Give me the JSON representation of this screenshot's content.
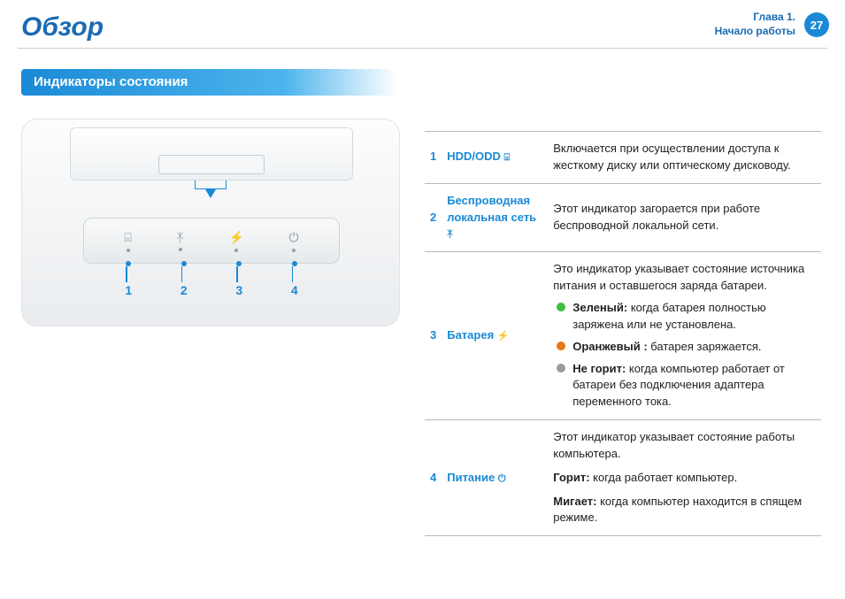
{
  "header": {
    "title": "Обзор",
    "chapter_line1": "Глава 1.",
    "chapter_line2": "Начало работы",
    "page_number": "27"
  },
  "section": {
    "title": "Индикаторы состояния"
  },
  "diagram": {
    "led_count": 4,
    "led_icons": [
      "disk",
      "wifi",
      "battery",
      "power"
    ],
    "numbers": [
      "1",
      "2",
      "3",
      "4"
    ],
    "accent_color": "#1a8ad6"
  },
  "table": {
    "rows": [
      {
        "num": "1",
        "label": "HDD/ODD",
        "icon": "disk",
        "desc": "Включается при осуществлении доступа к жесткому диску или оптическому дисководу."
      },
      {
        "num": "2",
        "label": "Беспроводная локальная сеть",
        "icon": "wifi",
        "desc": "Этот индикатор загорается при работе беспроводной локальной сети."
      },
      {
        "num": "3",
        "label": "Батарея",
        "icon": "battery",
        "desc_intro": "Это индикатор указывает состояние источника питания и оставшегося заряда батареи.",
        "bullets": [
          {
            "color": "#3fbf3f",
            "bold": "Зеленый:",
            "text": " когда батарея полностью заряжена или не установлена."
          },
          {
            "color": "#e67817",
            "bold": "Оранжевый :",
            "text": " батарея заряжается."
          },
          {
            "color": "#9a9a9a",
            "bold": "Не горит:",
            "text": " когда компьютер работает от батареи без подключения адаптера переменного тока."
          }
        ]
      },
      {
        "num": "4",
        "label": "Питание",
        "icon": "power",
        "desc_intro": "Этот индикатор указывает состояние работы компьютера.",
        "lines": [
          {
            "bold": "Горит:",
            "text": " когда работает компьютер."
          },
          {
            "bold": "Мигает:",
            "text": " когда компьютер находится в спящем режиме."
          }
        ]
      }
    ]
  },
  "icons": {
    "disk": "⌻",
    "wifi": "ᛡ",
    "battery": "⚡",
    "power": "⏻"
  },
  "colors": {
    "primary_blue": "#1a8ad6",
    "title_blue": "#1a6bb3",
    "border_gray": "#b8b8b8"
  }
}
